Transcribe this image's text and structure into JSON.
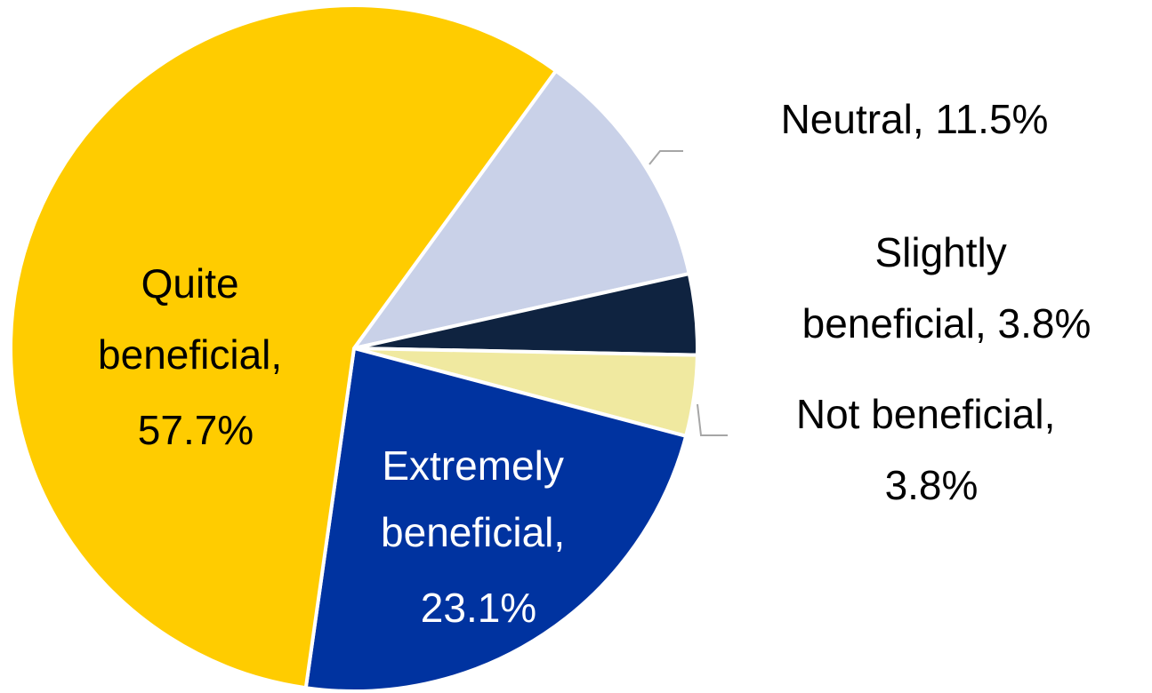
{
  "chart_data": {
    "type": "pie",
    "title": "",
    "slices": [
      {
        "name": "Neutral",
        "value": 11.5,
        "label_lines": [
          "Neutral, 11.5%"
        ],
        "color": "#c9d1e8",
        "text_color": "#000000",
        "label_pos": "outside"
      },
      {
        "name": "Slightly beneficial",
        "value": 3.8,
        "label_lines": [
          "Slightly",
          "beneficial, 3.8%"
        ],
        "color": "#0f2340",
        "text_color": "#000000",
        "label_pos": "outside"
      },
      {
        "name": "Not beneficial",
        "value": 3.8,
        "label_lines": [
          "Not beneficial,",
          "3.8%"
        ],
        "color": "#f0e9a0",
        "text_color": "#000000",
        "label_pos": "outside"
      },
      {
        "name": "Extremely beneficial",
        "value": 23.1,
        "label_lines": [
          "Extremely",
          "beneficial,",
          "23.1%"
        ],
        "color": "#0033a0",
        "text_color": "#ffffff",
        "label_pos": "inside"
      },
      {
        "name": "Quite beneficial",
        "value": 57.7,
        "label_lines": [
          "Quite",
          "beneficial,",
          "57.7%"
        ],
        "color": "#ffcc00",
        "text_color": "#000000",
        "label_pos": "inside"
      }
    ],
    "legend": "none"
  }
}
